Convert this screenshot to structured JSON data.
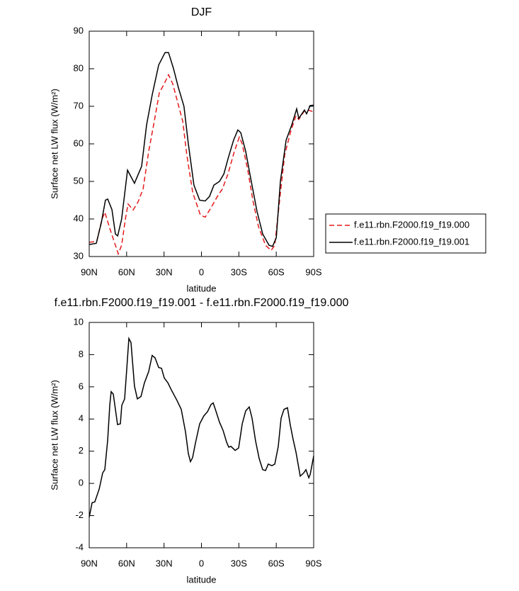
{
  "chart_data": [
    {
      "type": "line",
      "title": "DJF",
      "xlabel": "latitude",
      "ylabel": "Surface net LW flux (W/m²)",
      "xlim": [
        90,
        -90
      ],
      "xticks": [
        {
          "value": 90,
          "label": "90N"
        },
        {
          "value": 60,
          "label": "60N"
        },
        {
          "value": 30,
          "label": "30N"
        },
        0,
        {
          "value": -30,
          "label": "30S"
        },
        {
          "value": -60,
          "label": "60S"
        },
        {
          "value": -90,
          "label": "90S"
        }
      ],
      "ylim": [
        30,
        90
      ],
      "yticks": [
        30,
        40,
        50,
        60,
        70,
        80,
        90
      ],
      "legend": "right",
      "series": [
        {
          "name": "f.e11.rbn.F2000.f19_f19.000",
          "color": "#e41a1c",
          "dashed": true,
          "x": [
            90,
            84,
            79.7,
            77.5,
            73,
            69,
            66.7,
            64,
            61,
            58.8,
            54.8,
            50.9,
            46.8,
            42.3,
            37.8,
            33.8,
            29.8,
            26.4,
            23,
            19,
            15,
            11.7,
            7,
            0.8,
            -3,
            -7.7,
            -12.8,
            -16.8,
            -21.3,
            -26.4,
            -30.4,
            -32.7,
            -37.2,
            -41.2,
            -45.7,
            -51.4,
            -55.9,
            -58.8,
            -62.7,
            -66.7,
            -71.3,
            -75.8,
            -78,
            -82.6,
            -85.5,
            -90
          ],
          "values": [
            33.8,
            34,
            40,
            41.8,
            37,
            33,
            30.7,
            33,
            40,
            44,
            42.4,
            44.5,
            48,
            58,
            66,
            73.6,
            76,
            78.4,
            76,
            71,
            66,
            57,
            47,
            41,
            40.5,
            43,
            46,
            48,
            52,
            58,
            61.8,
            60,
            53,
            45,
            38,
            33,
            31.6,
            33,
            45,
            57,
            63,
            67.5,
            66.5,
            68.8,
            69,
            68.5
          ]
        },
        {
          "name": "f.e11.rbn.F2000.f19_f19.001",
          "color": "#000000",
          "dashed": false,
          "x": [
            90,
            84.3,
            80.3,
            77,
            75.2,
            71.8,
            69,
            67.2,
            64,
            59.3,
            53.7,
            48,
            44,
            39.5,
            34.3,
            29.2,
            26.4,
            22.4,
            18.5,
            14,
            10.5,
            6,
            1.4,
            -3,
            -6.5,
            -10,
            -14.5,
            -18,
            -21.3,
            -25.8,
            -29.2,
            -31.5,
            -35.5,
            -40,
            -44.6,
            -49.1,
            -54.2,
            -57,
            -60,
            -63.3,
            -67.9,
            -72.4,
            -76.4,
            -78.1,
            -82.6,
            -84.3,
            -87.2,
            -90
          ],
          "values": [
            33.2,
            33.5,
            39,
            45,
            45.3,
            42.5,
            36,
            35.5,
            40,
            53,
            49.5,
            54,
            65,
            73,
            81,
            84.3,
            84.3,
            80,
            75,
            70,
            60,
            49,
            45,
            44.8,
            46,
            49,
            50,
            52,
            56,
            61,
            63.7,
            63,
            58,
            50,
            42,
            36,
            33,
            32.7,
            35,
            50,
            61,
            65,
            69.3,
            66.8,
            69,
            68,
            70.2,
            70.3
          ]
        }
      ]
    },
    {
      "type": "line",
      "title": "f.e11.rbn.F2000.f19_f19.001 - f.e11.rbn.F2000.f19_f19.000",
      "xlabel": "latitude",
      "ylabel": "Surface net LW flux (W/m²)",
      "xlim": [
        90,
        -90
      ],
      "xticks": [
        {
          "value": 90,
          "label": "90N"
        },
        {
          "value": 60,
          "label": "60N"
        },
        {
          "value": 30,
          "label": "30N"
        },
        0,
        {
          "value": -30,
          "label": "30S"
        },
        {
          "value": -60,
          "label": "60S"
        },
        {
          "value": -90,
          "label": "90S"
        }
      ],
      "ylim": [
        -4,
        10
      ],
      "yticks": [
        -4,
        -2,
        0,
        2,
        4,
        6,
        8,
        10
      ],
      "color": "#000000",
      "x": [
        90,
        87.7,
        85.5,
        82,
        79.2,
        77.5,
        75.2,
        73.5,
        72.4,
        70.7,
        69,
        67.3,
        65,
        63.9,
        61.6,
        59.9,
        58.2,
        56.5,
        53.7,
        51.4,
        48.5,
        45.7,
        42.3,
        39.5,
        37.2,
        34.3,
        32,
        29.8,
        26.9,
        24.1,
        19.6,
        16.2,
        12.8,
        10.5,
        8.8,
        7.1,
        4.8,
        1.4,
        -2,
        -4.8,
        -7.7,
        -9.4,
        -11.6,
        -14.5,
        -17.3,
        -20.2,
        -21.9,
        -23.6,
        -27,
        -29.8,
        -32.7,
        -35.5,
        -38.3,
        -40.6,
        -43.4,
        -46.3,
        -49.1,
        -51.4,
        -53.6,
        -56.5,
        -58.8,
        -61.6,
        -63.9,
        -66.2,
        -69,
        -71.3,
        -73.5,
        -75.8,
        -79.2,
        -82,
        -83.8,
        -86.1,
        -87.2,
        -90
      ],
      "values": [
        -2.1,
        -1.2,
        -1.15,
        -0.35,
        0.65,
        0.85,
        2.7,
        4.9,
        5.7,
        5.55,
        4.6,
        3.65,
        3.7,
        4.85,
        5.25,
        7.1,
        9.0,
        8.75,
        6.05,
        5.25,
        5.4,
        6.25,
        6.95,
        7.95,
        7.8,
        7.2,
        7.15,
        6.55,
        6.25,
        5.8,
        5.15,
        4.6,
        3.2,
        1.85,
        1.35,
        1.6,
        2.5,
        3.7,
        4.2,
        4.45,
        4.9,
        5.0,
        4.5,
        3.8,
        3.3,
        2.55,
        2.25,
        2.3,
        2.05,
        2.2,
        3.7,
        4.5,
        4.75,
        4.05,
        2.65,
        1.55,
        0.85,
        0.8,
        1.2,
        1.1,
        1.2,
        2.3,
        4.05,
        4.6,
        4.7,
        3.6,
        2.75,
        1.95,
        0.45,
        0.65,
        0.85,
        0.35,
        0.55,
        1.7
      ]
    }
  ]
}
